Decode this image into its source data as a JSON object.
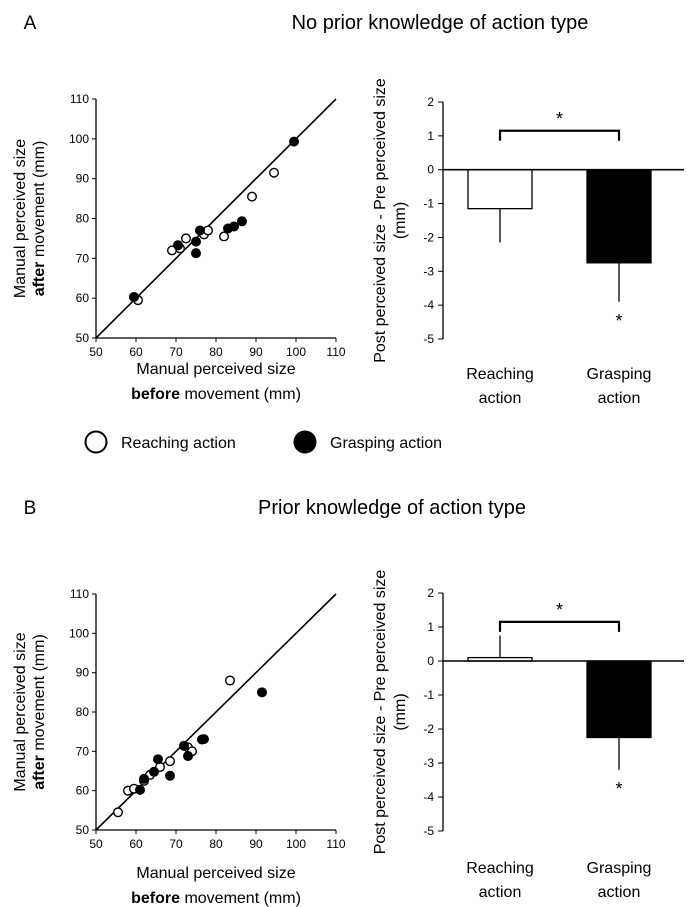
{
  "legend": {
    "items": [
      {
        "name": "Reaching action",
        "fill": "#ffffff"
      },
      {
        "name": "Grasping action",
        "fill": "#000000"
      }
    ]
  },
  "chart_data": [
    {
      "panel": "A",
      "title": "No prior knowledge of action type",
      "scatter": {
        "type": "scatter",
        "xlabel": {
          "plain": "Manual perceived size",
          "bold": "before",
          "rest": " movement (mm)"
        },
        "ylabel": {
          "plain": "Manual perceived size",
          "bold": "after",
          "rest": " movement (mm)"
        },
        "xlim": [
          50,
          110
        ],
        "ylim": [
          50,
          110
        ],
        "xticks": [
          50,
          60,
          70,
          80,
          90,
          100,
          110
        ],
        "yticks": [
          50,
          60,
          70,
          80,
          90,
          100,
          110
        ],
        "identity_line": true,
        "series": [
          {
            "name": "Reaching action",
            "points": [
              [
                60.5,
                59.5
              ],
              [
                69,
                72
              ],
              [
                71,
                72.5
              ],
              [
                72.5,
                75
              ],
              [
                77,
                76
              ],
              [
                78,
                77
              ],
              [
                82,
                75.5
              ],
              [
                89,
                85.5
              ],
              [
                94.5,
                91.5
              ]
            ]
          },
          {
            "name": "Grasping action",
            "points": [
              [
                59.5,
                60.3
              ],
              [
                70.5,
                73.3
              ],
              [
                75,
                74.2
              ],
              [
                75,
                71.3
              ],
              [
                76,
                77
              ],
              [
                83,
                77.5
              ],
              [
                84.5,
                78
              ],
              [
                86.5,
                79.3
              ],
              [
                99.5,
                99.3
              ]
            ]
          }
        ]
      },
      "bar": {
        "type": "bar",
        "ylabel": "Post perceived size - Pre perceived size (mm)",
        "ylim": [
          -5,
          2
        ],
        "yticks": [
          2,
          1,
          0,
          -1,
          -2,
          -3,
          -4,
          -5
        ],
        "categories": [
          "Reaching action",
          "Grasping action"
        ],
        "category_lines": [
          [
            "Reaching",
            "action"
          ],
          [
            "Grasping",
            "action"
          ]
        ],
        "values": [
          -1.15,
          -2.75
        ],
        "errors": [
          1.0,
          1.15
        ],
        "fills": [
          "#ffffff",
          "#000000"
        ],
        "sig_bracket": "*",
        "sig_marks": [
          "",
          "*"
        ]
      }
    },
    {
      "panel": "B",
      "title": "Prior knowledge of action type",
      "scatter": {
        "type": "scatter",
        "xlabel": {
          "plain": "Manual perceived size",
          "bold": "before",
          "rest": " movement (mm)"
        },
        "ylabel": {
          "plain": "Manual perceived size",
          "bold": "after",
          "rest": " movement (mm)"
        },
        "xlim": [
          50,
          110
        ],
        "ylim": [
          50,
          110
        ],
        "xticks": [
          50,
          60,
          70,
          80,
          90,
          100,
          110
        ],
        "yticks": [
          50,
          60,
          70,
          80,
          90,
          100,
          110
        ],
        "identity_line": true,
        "series": [
          {
            "name": "Reaching action",
            "points": [
              [
                55.5,
                54.5
              ],
              [
                58,
                60
              ],
              [
                59.5,
                60.5
              ],
              [
                62,
                62.5
              ],
              [
                63.5,
                64
              ],
              [
                66,
                66
              ],
              [
                68.5,
                67.5
              ],
              [
                73,
                71
              ],
              [
                74,
                70
              ],
              [
                83.5,
                88
              ]
            ]
          },
          {
            "name": "Grasping action",
            "points": [
              [
                61,
                60.2
              ],
              [
                62,
                63
              ],
              [
                64.5,
                64.8
              ],
              [
                65.5,
                68
              ],
              [
                68.5,
                63.8
              ],
              [
                72,
                71.4
              ],
              [
                73,
                68.8
              ],
              [
                76.5,
                73
              ],
              [
                77,
                73.1
              ],
              [
                91.5,
                85
              ]
            ]
          }
        ]
      },
      "bar": {
        "type": "bar",
        "ylabel": "Post perceived size - Pre perceived size (mm)",
        "ylim": [
          -5,
          2
        ],
        "yticks": [
          2,
          1,
          0,
          -1,
          -2,
          -3,
          -4,
          -5
        ],
        "categories": [
          "Reaching action",
          "Grasping action"
        ],
        "category_lines": [
          [
            "Reaching",
            "action"
          ],
          [
            "Grasping",
            "action"
          ]
        ],
        "values": [
          0.1,
          -2.25
        ],
        "errors": [
          0.65,
          0.95
        ],
        "fills": [
          "#ffffff",
          "#000000"
        ],
        "sig_bracket": "*",
        "sig_marks": [
          "",
          "*"
        ]
      }
    }
  ]
}
